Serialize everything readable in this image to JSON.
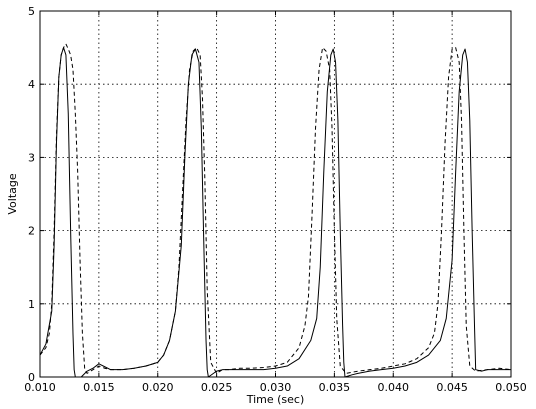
{
  "chart_data": {
    "type": "line",
    "title": "",
    "xlabel": "Time (sec)",
    "ylabel": "Voltage",
    "xlim": [
      0.01,
      0.05
    ],
    "ylim": [
      0,
      5
    ],
    "xticks": [
      0.01,
      0.015,
      0.02,
      0.025,
      0.03,
      0.035,
      0.04,
      0.045,
      0.05
    ],
    "xtick_labels": [
      "0.010",
      "0.015",
      "0.020",
      "0.025",
      "0.030",
      "0.035",
      "0.040",
      "0.045",
      "0.050"
    ],
    "yticks": [
      0,
      1,
      2,
      3,
      4,
      5
    ],
    "ytick_labels": [
      "0",
      "1",
      "2",
      "3",
      "4",
      "5"
    ],
    "grid": true,
    "legend": "none",
    "series": [
      {
        "style": "solid",
        "color": "#000000",
        "x": [
          0.01,
          0.0105,
          0.011,
          0.0112,
          0.0114,
          0.0116,
          0.0118,
          0.012,
          0.0122,
          0.0124,
          0.0126,
          0.0128,
          0.0129,
          0.013,
          0.0135,
          0.014,
          0.0145,
          0.015,
          0.0155,
          0.016,
          0.017,
          0.018,
          0.019,
          0.02,
          0.0205,
          0.021,
          0.0215,
          0.022,
          0.0223,
          0.0226,
          0.0229,
          0.0232,
          0.0235,
          0.0237,
          0.0239,
          0.0241,
          0.0242,
          0.0243,
          0.025,
          0.0255,
          0.026,
          0.027,
          0.028,
          0.029,
          0.03,
          0.031,
          0.032,
          0.033,
          0.0335,
          0.0338,
          0.0341,
          0.0344,
          0.0347,
          0.0349,
          0.0351,
          0.0353,
          0.0355,
          0.0357,
          0.0358,
          0.0359,
          0.0365,
          0.037,
          0.038,
          0.039,
          0.04,
          0.041,
          0.042,
          0.043,
          0.044,
          0.0445,
          0.045,
          0.0453,
          0.0456,
          0.0459,
          0.0461,
          0.0463,
          0.0465,
          0.0467,
          0.0469,
          0.047,
          0.0475,
          0.048,
          0.049,
          0.05
        ],
        "y": [
          0.3,
          0.45,
          0.9,
          1.8,
          3.2,
          4.1,
          4.4,
          4.5,
          4.4,
          3.6,
          2.0,
          0.6,
          0.1,
          0.0,
          0.0,
          0.08,
          0.12,
          0.18,
          0.14,
          0.1,
          0.1,
          0.12,
          0.15,
          0.2,
          0.3,
          0.5,
          0.9,
          1.8,
          3.0,
          4.0,
          4.4,
          4.48,
          4.3,
          3.4,
          1.9,
          0.5,
          0.1,
          0.0,
          0.08,
          0.1,
          0.1,
          0.1,
          0.1,
          0.1,
          0.12,
          0.15,
          0.25,
          0.5,
          0.8,
          1.5,
          2.8,
          3.9,
          4.4,
          4.48,
          4.3,
          3.5,
          2.0,
          0.7,
          0.2,
          0.0,
          0.03,
          0.05,
          0.08,
          0.1,
          0.12,
          0.15,
          0.2,
          0.3,
          0.5,
          0.8,
          1.6,
          2.8,
          3.9,
          4.4,
          4.48,
          4.3,
          3.5,
          2.0,
          0.7,
          0.1,
          0.08,
          0.1,
          0.1,
          0.1
        ]
      },
      {
        "style": "dashed",
        "color": "#000000",
        "x": [
          0.01,
          0.0105,
          0.0108,
          0.011,
          0.0112,
          0.0114,
          0.0116,
          0.0118,
          0.012,
          0.0122,
          0.0124,
          0.0126,
          0.0128,
          0.013,
          0.0132,
          0.0134,
          0.0136,
          0.0138,
          0.014,
          0.0145,
          0.015,
          0.0155,
          0.016,
          0.017,
          0.018,
          0.019,
          0.02,
          0.0205,
          0.021,
          0.0215,
          0.0218,
          0.0221,
          0.0224,
          0.0227,
          0.023,
          0.0233,
          0.0236,
          0.0238,
          0.024,
          0.0242,
          0.0245,
          0.025,
          0.0255,
          0.026,
          0.027,
          0.028,
          0.029,
          0.03,
          0.031,
          0.032,
          0.0325,
          0.0328,
          0.0331,
          0.0334,
          0.0337,
          0.034,
          0.0343,
          0.0346,
          0.0348,
          0.035,
          0.0352,
          0.0355,
          0.036,
          0.037,
          0.038,
          0.039,
          0.04,
          0.041,
          0.042,
          0.043,
          0.0435,
          0.0438,
          0.0441,
          0.0444,
          0.0447,
          0.045,
          0.0453,
          0.0456,
          0.0458,
          0.046,
          0.0462,
          0.0465,
          0.047,
          0.048,
          0.049,
          0.05
        ],
        "y": [
          0.3,
          0.4,
          0.6,
          1.0,
          2.0,
          3.3,
          4.1,
          4.4,
          4.5,
          4.55,
          4.48,
          4.4,
          4.2,
          3.6,
          2.8,
          1.6,
          0.6,
          0.1,
          0.05,
          0.1,
          0.15,
          0.12,
          0.1,
          0.1,
          0.12,
          0.15,
          0.2,
          0.3,
          0.5,
          0.9,
          1.5,
          2.5,
          3.5,
          4.2,
          4.45,
          4.5,
          4.4,
          3.8,
          2.7,
          1.2,
          0.2,
          0.05,
          0.1,
          0.1,
          0.12,
          0.12,
          0.13,
          0.15,
          0.2,
          0.4,
          0.7,
          1.1,
          2.2,
          3.4,
          4.2,
          4.5,
          4.45,
          4.2,
          3.4,
          2.0,
          0.8,
          0.15,
          0.05,
          0.08,
          0.1,
          0.12,
          0.15,
          0.18,
          0.25,
          0.4,
          0.6,
          1.0,
          2.0,
          3.2,
          4.1,
          4.48,
          4.5,
          4.3,
          3.5,
          2.0,
          0.7,
          0.15,
          0.08,
          0.1,
          0.12,
          0.1
        ]
      }
    ]
  }
}
